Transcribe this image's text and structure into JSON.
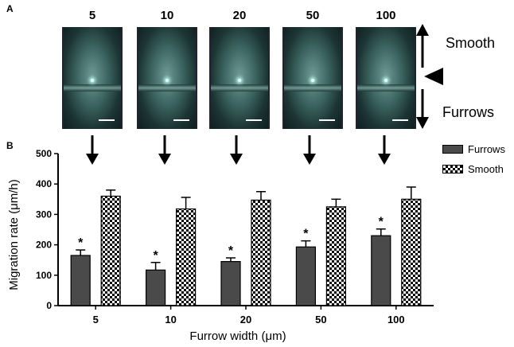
{
  "panel_a": {
    "letter": "A",
    "image_labels": [
      "5",
      "10",
      "20",
      "50",
      "100"
    ],
    "smooth_label": "Smooth",
    "furrows_label": "Furrows"
  },
  "panel_b": {
    "letter": "B"
  },
  "colors": {
    "furrows": "#4a4a4a",
    "smooth_pattern": "checkerboard"
  },
  "chart_data": {
    "type": "bar",
    "categories": [
      "5",
      "10",
      "20",
      "50",
      "100"
    ],
    "series": [
      {
        "name": "Furrows",
        "values": [
          165,
          117,
          145,
          193,
          230
        ],
        "errors": [
          18,
          25,
          12,
          20,
          22
        ]
      },
      {
        "name": "Smooth",
        "values": [
          360,
          318,
          347,
          325,
          350
        ],
        "errors": [
          20,
          38,
          28,
          25,
          40
        ]
      }
    ],
    "significance": [
      "*",
      "*",
      "*",
      "*",
      "*"
    ],
    "xlabel": "Furrow width (μm)",
    "ylabel": "Migration rate (μm/h)",
    "ylim": [
      0,
      500
    ],
    "yticks": [
      0,
      100,
      200,
      300,
      400,
      500
    ],
    "legend_position": "top-right",
    "grid": false
  }
}
